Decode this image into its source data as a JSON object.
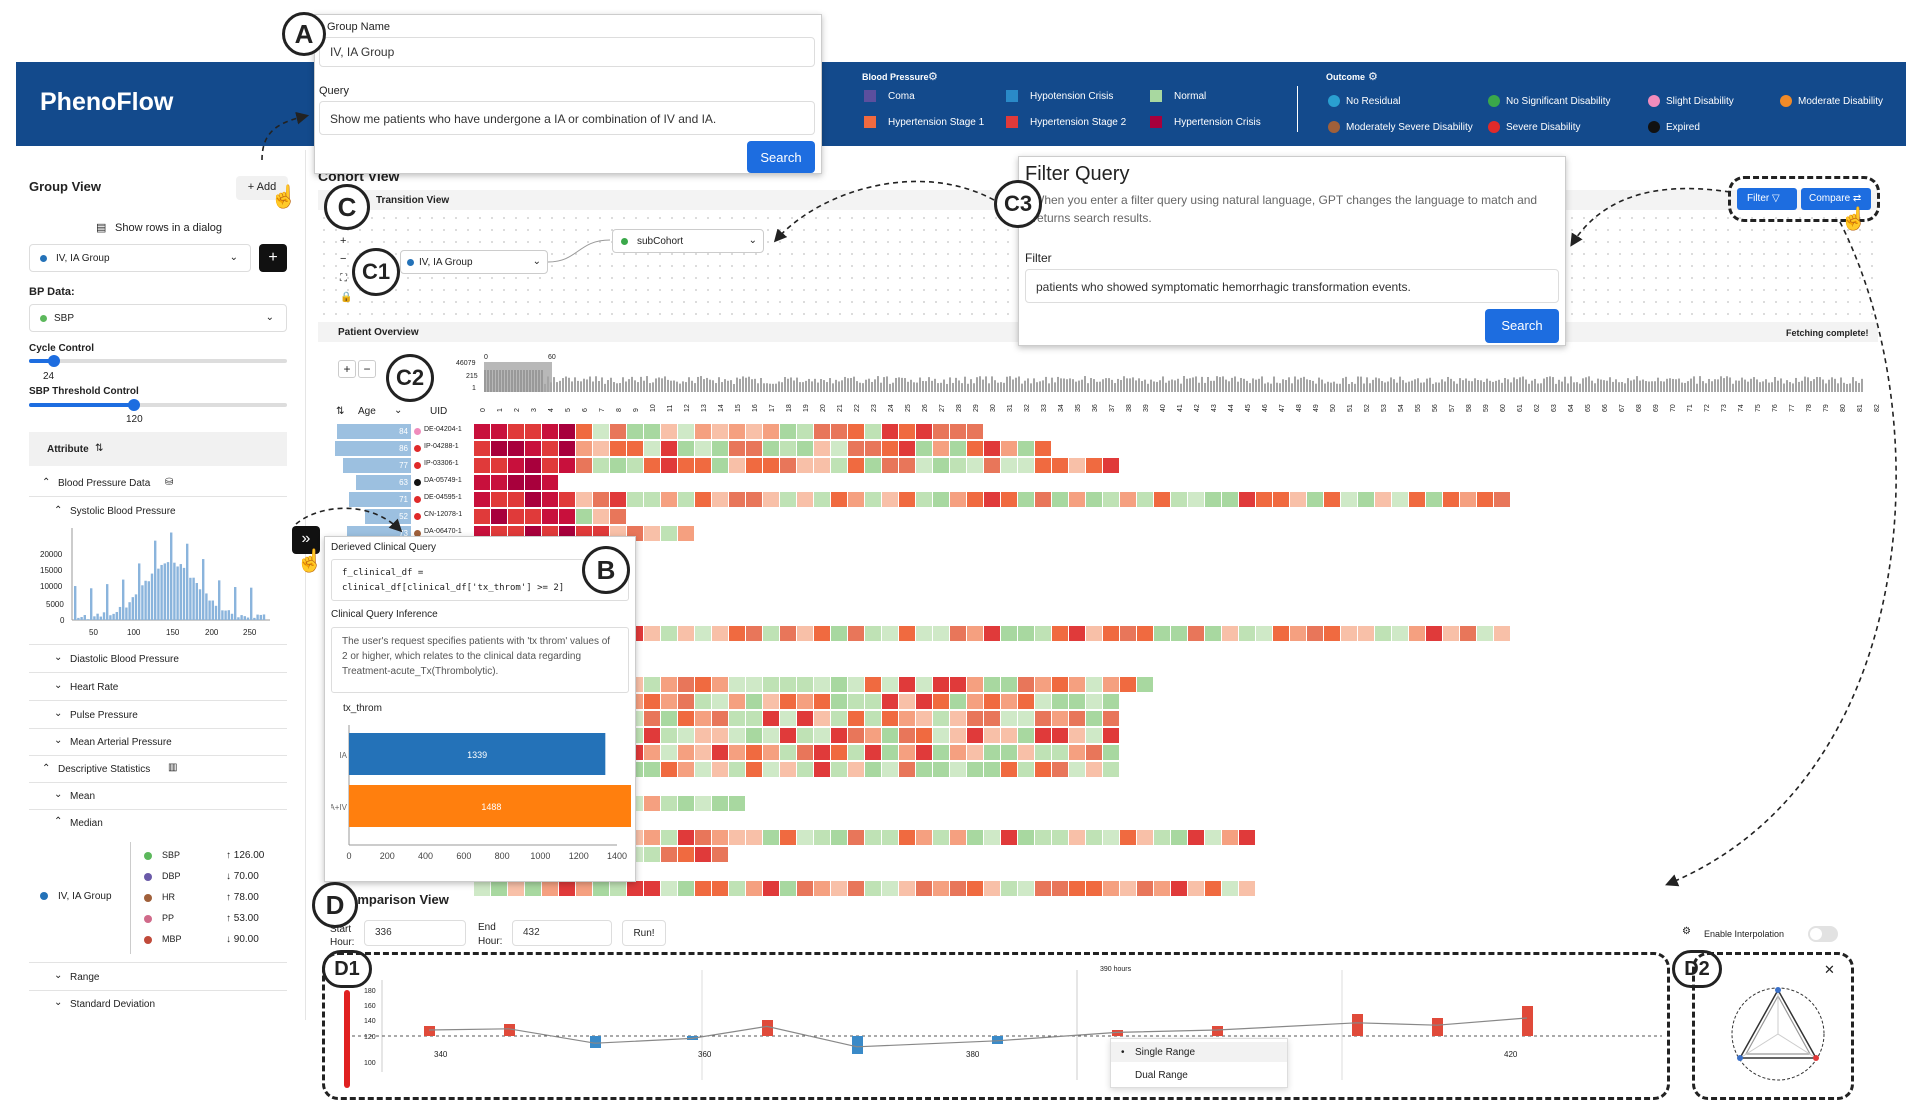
{
  "app": {
    "title": "PhenoFlow"
  },
  "legend_bp": {
    "title": "Blood Pressure",
    "items": [
      {
        "label": "Coma",
        "color": "#5b4f9e"
      },
      {
        "label": "Hypotension Crisis",
        "color": "#2a8ac8"
      },
      {
        "label": "Normal",
        "color": "#a8d8a0"
      },
      {
        "label": "Hypertension Stage 1",
        "color": "#f06a40"
      },
      {
        "label": "Hypertension Stage 2",
        "color": "#e03a3a"
      },
      {
        "label": "Hypertension Crisis",
        "color": "#a8003c"
      }
    ]
  },
  "legend_outcome": {
    "title": "Outcome",
    "items": [
      {
        "label": "No Residual",
        "color": "#2a9fd0"
      },
      {
        "label": "No Significant Disability",
        "color": "#3aa84a"
      },
      {
        "label": "Slight Disability",
        "color": "#f08cbc"
      },
      {
        "label": "Moderate Disability",
        "color": "#f08a28"
      },
      {
        "label": "Moderately Severe Disability",
        "color": "#a0603a"
      },
      {
        "label": "Severe Disability",
        "color": "#e02a2a"
      },
      {
        "label": "Expired",
        "color": "#111111"
      }
    ]
  },
  "group_popup": {
    "name_label": "Group Name",
    "name_value": "IV, IA Group",
    "query_label": "Query",
    "query_value": "Show me patients who have undergone a IA or combination of IV and IA.",
    "search": "Search"
  },
  "sidebar": {
    "title": "Group View",
    "add": "+ Add",
    "show_rows": "Show rows in a dialog",
    "group_select": "IV, IA Group",
    "bp_data_label": "BP Data:",
    "bp_select": "SBP",
    "cycle_label": "Cycle Control",
    "cycle_value": "24",
    "threshold_label": "SBP Threshold Control",
    "threshold_value": "120",
    "attribute_header": "Attribute",
    "items": {
      "bp_data": "Blood Pressure Data",
      "sbp": "Systolic Blood Pressure",
      "dbp": "Diastolic Blood Pressure",
      "hr": "Heart Rate",
      "pp": "Pulse Pressure",
      "map": "Mean Arterial Pressure",
      "desc": "Descriptive Statistics",
      "mean": "Mean",
      "median": "Median",
      "range": "Range",
      "std": "Standard Deviation"
    },
    "hist_y": [
      "20000",
      "15000",
      "10000",
      "5000",
      "0"
    ],
    "hist_x": [
      "50",
      "100",
      "150",
      "200",
      "250"
    ],
    "median_group": "IV, IA Group",
    "median_rows": [
      {
        "k": "SBP",
        "v": "126.00",
        "dir": "↑",
        "c": "#5cb85c"
      },
      {
        "k": "DBP",
        "v": "70.00",
        "dir": "↓",
        "c": "#6a5aa8"
      },
      {
        "k": "HR",
        "v": "78.00",
        "dir": "↑",
        "c": "#a0603a"
      },
      {
        "k": "PP",
        "v": "53.00",
        "dir": "↑",
        "c": "#d06a8a"
      },
      {
        "k": "MBP",
        "v": "90.00",
        "dir": "↓",
        "c": "#c04a3a"
      }
    ]
  },
  "cohort": {
    "title": "Cohort View",
    "transition": "Transition View",
    "node1": "IV, IA Group",
    "node2": "subCohort",
    "patient_overview": "Patient Overview",
    "fetching": "Fetching complete!",
    "filter": "Filter",
    "compare": "Compare",
    "age": "Age",
    "uid": "UID",
    "count_ticks": [
      "46079",
      "215",
      "1"
    ],
    "range_ticks": [
      "0",
      "60"
    ]
  },
  "patients": [
    {
      "age": "84",
      "uid": "DE-04204-1",
      "c": "#f08cbc"
    },
    {
      "age": "86",
      "uid": "IP-04288-1",
      "c": "#e02a2a"
    },
    {
      "age": "77",
      "uid": "IP-03306-1",
      "c": "#e02a2a"
    },
    {
      "age": "63",
      "uid": "DA-05749-1",
      "c": "#111111"
    },
    {
      "age": "71",
      "uid": "DE-04595-1",
      "c": "#e02a2a"
    },
    {
      "age": "52",
      "uid": "CN-12078-1",
      "c": "#e02a2a"
    },
    {
      "age": "73",
      "uid": "DA-06470-1",
      "c": "#a0603a"
    }
  ],
  "filter_popup": {
    "title": "Filter Query",
    "desc": "When you enter a filter query using natural language, GPT changes the language to match and returns search results.",
    "filter_label": "Filter",
    "filter_value": "patients who showed symptomatic hemorrhagic transformation events.",
    "search": "Search"
  },
  "clinical": {
    "derived_title": "Derieved Clinical Query",
    "code1": "f_clinical_df =",
    "code2": "clinical_df[clinical_df['tx_throm'] >= 2]",
    "inference_title": "Clinical Query Inference",
    "inference": "The user's request specifies patients with 'tx throm' values of 2 or higher, which relates to the clinical data regarding Treatment-acute_Tx(Thrombolytic).",
    "chart_title": "tx_throm"
  },
  "chart_data": {
    "type": "bar",
    "title": "tx_throm",
    "categories": [
      "IA",
      "IA+IV"
    ],
    "values": [
      1339,
      1488
    ],
    "colors": [
      "#2472b8",
      "#ff7f0e"
    ],
    "xlim": [
      0,
      1400
    ],
    "xticks": [
      0,
      200,
      400,
      600,
      800,
      1000,
      1200,
      1400
    ]
  },
  "comparison": {
    "title": "Comparison View",
    "start_label": "Start",
    "hour_label": "Hour:",
    "start_value": "336",
    "end_label": "End",
    "end_hour_label": "Hour:",
    "end_value": "432",
    "run": "Run!",
    "interp": "Enable Interpolation",
    "y_ticks": [
      "180",
      "160",
      "140",
      "120",
      "100"
    ],
    "x_ticks": [
      "340",
      "360",
      "380",
      "420"
    ],
    "marker": "390 hours",
    "opt1": "Single Range",
    "opt2": "Dual Range"
  },
  "callouts": {
    "A": "A",
    "B": "B",
    "C": "C",
    "C1": "C1",
    "C2": "C2",
    "C3": "C3",
    "D": "D",
    "D1": "D1",
    "D2": "D2"
  }
}
